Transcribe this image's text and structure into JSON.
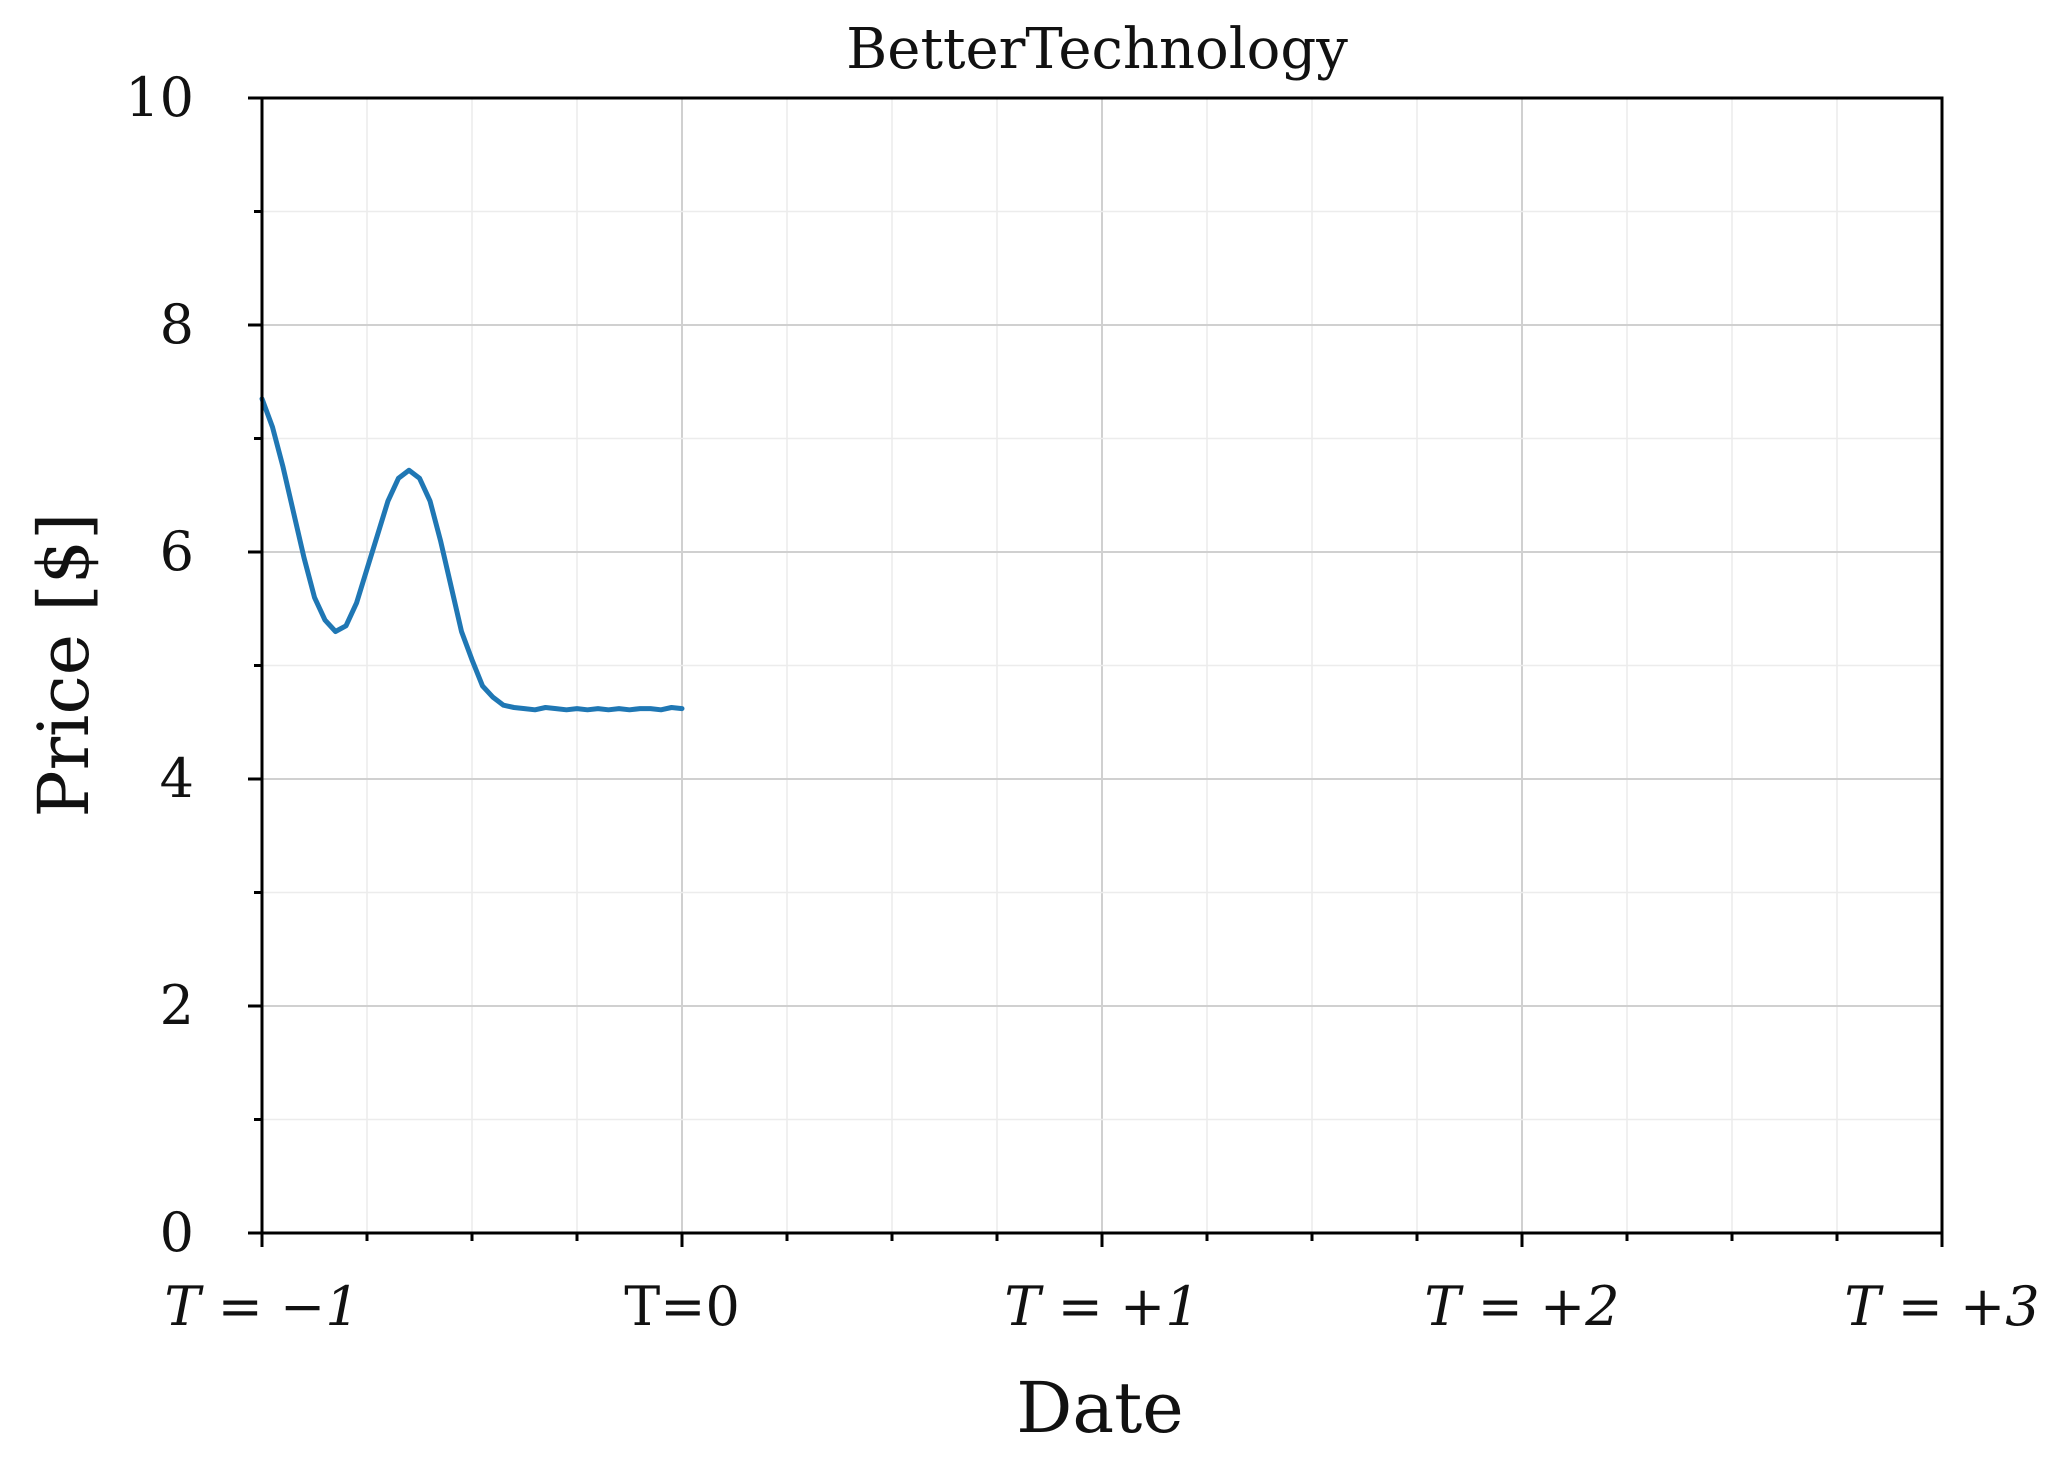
{
  "chart_data": {
    "type": "line",
    "title": "BetterTechnology",
    "xlabel": "Date",
    "ylabel": "Price [$]",
    "xlim": [
      -1,
      3
    ],
    "ylim": [
      0,
      10
    ],
    "x_ticks": [
      {
        "value": -1,
        "label": "T = −1",
        "italic": true
      },
      {
        "value": 0,
        "label": "T=0",
        "italic": false
      },
      {
        "value": 1,
        "label": "T = +1",
        "italic": true
      },
      {
        "value": 2,
        "label": "T = +2",
        "italic": true
      },
      {
        "value": 3,
        "label": "T = +3",
        "italic": true
      }
    ],
    "y_ticks": [
      0,
      2,
      4,
      6,
      8,
      10
    ],
    "grid": true,
    "series": [
      {
        "color": "#1f77b4",
        "x": [
          -1.0,
          -0.975,
          -0.95,
          -0.925,
          -0.9,
          -0.875,
          -0.85,
          -0.825,
          -0.8,
          -0.775,
          -0.75,
          -0.725,
          -0.7,
          -0.675,
          -0.65,
          -0.625,
          -0.6,
          -0.575,
          -0.55,
          -0.525,
          -0.5,
          -0.475,
          -0.45,
          -0.425,
          -0.4,
          -0.375,
          -0.35,
          -0.325,
          -0.3,
          -0.275,
          -0.25,
          -0.225,
          -0.2,
          -0.175,
          -0.15,
          -0.125,
          -0.1,
          -0.075,
          -0.05,
          -0.025,
          0.0
        ],
        "values": [
          7.35,
          7.1,
          6.75,
          6.35,
          5.95,
          5.6,
          5.4,
          5.3,
          5.35,
          5.55,
          5.85,
          6.15,
          6.45,
          6.65,
          6.72,
          6.65,
          6.45,
          6.1,
          5.7,
          5.3,
          5.05,
          4.82,
          4.72,
          4.65,
          4.63,
          4.62,
          4.61,
          4.63,
          4.62,
          4.61,
          4.62,
          4.61,
          4.62,
          4.61,
          4.62,
          4.61,
          4.62,
          4.62,
          4.61,
          4.63,
          4.62
        ]
      }
    ]
  }
}
